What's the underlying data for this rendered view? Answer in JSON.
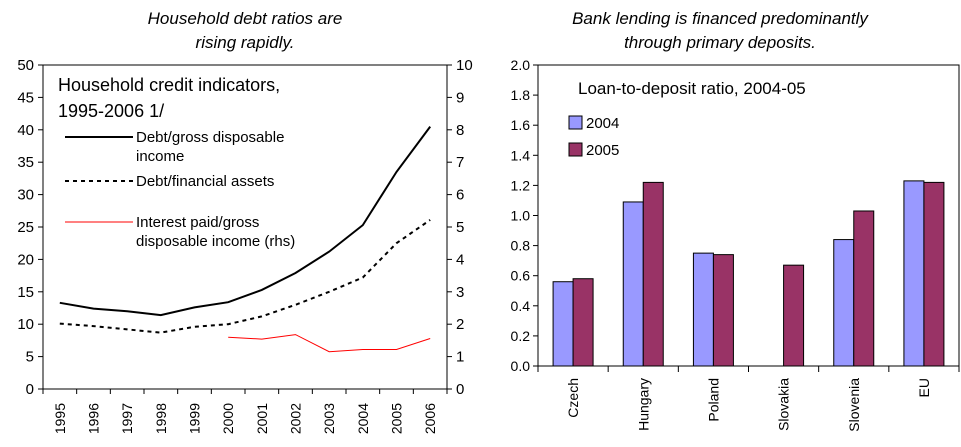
{
  "panels": {
    "left_title_line1": "Household debt ratios are",
    "left_title_line2": "rising rapidly.",
    "right_title_line1": "Bank lending is financed predominantly",
    "right_title_line2": "through primary deposits."
  },
  "chart_data": [
    {
      "type": "line",
      "title_line1": "Household credit indicators,",
      "title_line2": "1995-2006 1/",
      "x": [
        "1995",
        "1996",
        "1997",
        "1998",
        "1999",
        "2000",
        "2001",
        "2002",
        "2003",
        "2004",
        "2005",
        "2006"
      ],
      "ylim": [
        0,
        50
      ],
      "yticks": [
        0,
        5,
        10,
        15,
        20,
        25,
        30,
        35,
        40,
        45,
        50
      ],
      "y2lim": [
        0,
        10
      ],
      "y2ticks": [
        0,
        1,
        2,
        3,
        4,
        5,
        6,
        7,
        8,
        9,
        10
      ],
      "grid": false,
      "legend_position": "top-left",
      "series": [
        {
          "name_line1": "Debt/gross disposable",
          "name_line2": "income",
          "axis": "left",
          "style": "solid",
          "color": "#000000",
          "values": [
            13.3,
            12.4,
            12.0,
            11.4,
            12.6,
            13.4,
            15.3,
            17.9,
            21.2,
            25.3,
            33.5,
            40.5
          ]
        },
        {
          "name_line1": "Debt/financial assets",
          "name_line2": "",
          "axis": "left",
          "style": "dotted",
          "color": "#000000",
          "values": [
            10.1,
            9.7,
            9.2,
            8.7,
            9.6,
            10.0,
            11.2,
            13.0,
            15.0,
            17.2,
            22.5,
            26.1
          ]
        },
        {
          "name_line1": "Interest paid/gross",
          "name_line2": "disposable income (rhs)",
          "axis": "right",
          "style": "solid",
          "color": "#ff0000",
          "values": [
            null,
            null,
            null,
            null,
            null,
            1.6,
            1.54,
            1.68,
            1.15,
            1.22,
            1.22,
            1.56
          ]
        }
      ]
    },
    {
      "type": "bar",
      "title": "Loan-to-deposit ratio, 2004-05",
      "categories": [
        "Czech",
        "Hungary",
        "Poland",
        "Slovakia",
        "Slovenia",
        "EU"
      ],
      "ylim": [
        0,
        2.0
      ],
      "yticks": [
        "0.0",
        "0.2",
        "0.4",
        "0.6",
        "0.8",
        "1.0",
        "1.2",
        "1.4",
        "1.6",
        "1.8",
        "2.0"
      ],
      "grid": false,
      "legend_position": "top-left",
      "series": [
        {
          "name": "2004",
          "color": "#9999ff",
          "values": [
            0.56,
            1.09,
            0.75,
            null,
            0.84,
            1.23
          ]
        },
        {
          "name": "2005",
          "color": "#993366",
          "values": [
            0.58,
            1.22,
            0.74,
            0.67,
            1.03,
            1.22
          ]
        }
      ]
    }
  ]
}
